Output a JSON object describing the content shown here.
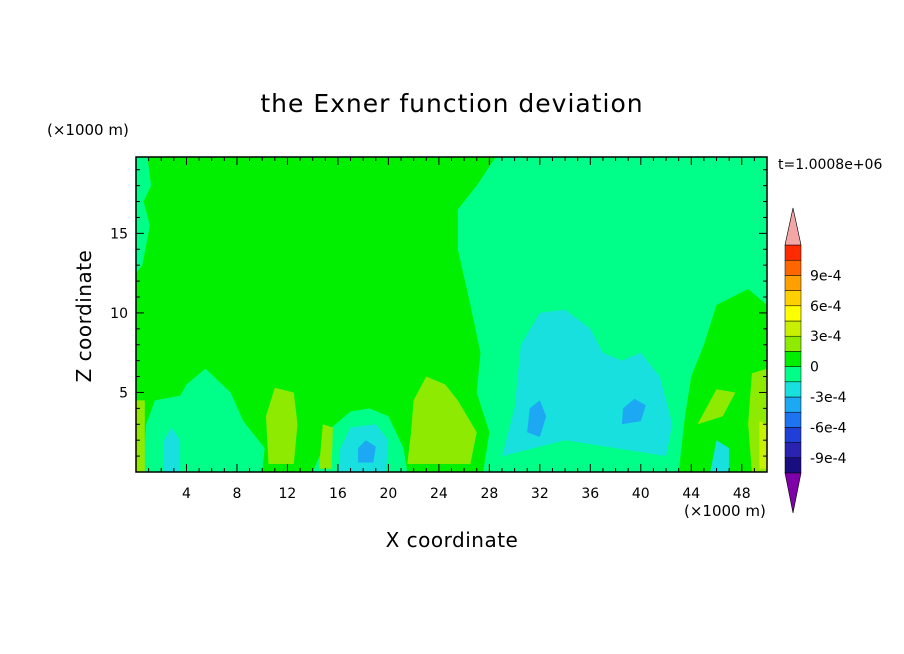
{
  "chart_data": {
    "type": "heatmap",
    "title": "the Exner function deviation",
    "xlabel": "X coordinate",
    "ylabel": "Z coordinate",
    "x_unit": "(×1000 m)",
    "y_unit": "(×1000 m)",
    "time_label": "t=1.0008e+06",
    "xlim": [
      0,
      50
    ],
    "ylim": [
      0,
      19.8
    ],
    "x_ticks": [
      "4",
      "8",
      "12",
      "16",
      "20",
      "24",
      "28",
      "32",
      "36",
      "40",
      "44",
      "48"
    ],
    "y_ticks": [
      "5",
      "10",
      "15"
    ],
    "colorbar": {
      "labels": [
        "9e-4",
        "6e-4",
        "3e-4",
        "0",
        "-3e-4",
        "-6e-4",
        "-9e-4"
      ],
      "level_min": -0.00105,
      "level_step": 0.00015,
      "colors": [
        "#1a0d80",
        "#2a22b0",
        "#1f3fd6",
        "#1e74f0",
        "#1ca8f2",
        "#17e0de",
        "#00ff88",
        "#00ee00",
        "#8eea00",
        "#c8f000",
        "#ffff00",
        "#ffd000",
        "#ff9f00",
        "#ff6600",
        "#ff2a00"
      ],
      "extend_low_color": "#7f00a8",
      "extend_high_color": "#f4a6a6"
    },
    "background_color": "#00f000",
    "regions": [
      {
        "label": "0 to 1.5e-4",
        "color": "#00f000",
        "poly": [
          [
            0,
            0
          ],
          [
            50,
            0
          ],
          [
            50,
            19.8
          ],
          [
            0,
            19.8
          ]
        ]
      },
      {
        "label": "-1.5e-4 to 0",
        "color": "#00ff88",
        "poly": [
          [
            28.5,
            19.8
          ],
          [
            50,
            19.8
          ],
          [
            50,
            10.5
          ],
          [
            48.5,
            11.5
          ],
          [
            46,
            10.5
          ],
          [
            45,
            8.0
          ],
          [
            44,
            6.0
          ],
          [
            43.5,
            3.5
          ],
          [
            43,
            0
          ],
          [
            27.5,
            0
          ],
          [
            28,
            2.5
          ],
          [
            27,
            5.0
          ],
          [
            27.3,
            7.5
          ],
          [
            26.5,
            10.5
          ],
          [
            25.5,
            14.0
          ],
          [
            25.5,
            16.5
          ],
          [
            27,
            18.0
          ]
        ]
      },
      {
        "label": "-1.5e-4 to 0",
        "color": "#00ff88",
        "poly": [
          [
            0,
            19.8
          ],
          [
            0.9,
            19.8
          ],
          [
            1.2,
            18.0
          ],
          [
            0.6,
            17.0
          ],
          [
            1.1,
            15.5
          ],
          [
            0.5,
            13.0
          ],
          [
            0,
            12.5
          ]
        ]
      },
      {
        "label": "-1.5e-4 to 0",
        "color": "#00ff88",
        "poly": [
          [
            0.5,
            0
          ],
          [
            10,
            0
          ],
          [
            10.2,
            1.5
          ],
          [
            8.5,
            3.2
          ],
          [
            7.5,
            5.0
          ],
          [
            5.5,
            6.5
          ],
          [
            4.0,
            5.5
          ],
          [
            3.5,
            4.8
          ],
          [
            1.5,
            4.5
          ],
          [
            0.8,
            3.0
          ]
        ]
      },
      {
        "label": "-1.5e-4 to 0",
        "color": "#00ff88",
        "poly": [
          [
            14,
            0
          ],
          [
            21.5,
            0
          ],
          [
            21.2,
            1.5
          ],
          [
            20,
            3.5
          ],
          [
            18.5,
            4.0
          ],
          [
            17,
            3.8
          ],
          [
            15.5,
            2.8
          ]
        ]
      },
      {
        "label": "-3e-4 to -1.5e-4",
        "color": "#17e0de",
        "poly": [
          [
            29,
            1.0
          ],
          [
            30,
            4.0
          ],
          [
            30.5,
            8.0
          ],
          [
            32,
            10.0
          ],
          [
            34,
            10.2
          ],
          [
            36,
            9.0
          ],
          [
            37,
            7.5
          ],
          [
            38.5,
            7.0
          ],
          [
            40,
            7.5
          ],
          [
            41.5,
            6.0
          ],
          [
            42.5,
            3.0
          ],
          [
            42,
            1.0
          ],
          [
            38,
            1.5
          ],
          [
            34,
            2.0
          ]
        ]
      },
      {
        "label": "-3e-4 to -1.5e-4",
        "color": "#17e0de",
        "poly": [
          [
            16,
            0
          ],
          [
            19.8,
            0
          ],
          [
            20,
            2.0
          ],
          [
            19,
            3.0
          ],
          [
            17,
            2.8
          ],
          [
            16.2,
            1.5
          ]
        ]
      },
      {
        "label": "-3e-4 to -1.5e-4",
        "color": "#17e0de",
        "poly": [
          [
            2.2,
            0
          ],
          [
            3.5,
            0
          ],
          [
            3.5,
            2.0
          ],
          [
            2.8,
            2.8
          ],
          [
            2.2,
            2.0
          ]
        ]
      },
      {
        "label": "-3e-4 to -1.5e-4",
        "color": "#17e0de",
        "poly": [
          [
            45.5,
            0
          ],
          [
            47,
            0
          ],
          [
            47,
            1.5
          ],
          [
            46,
            2.0
          ]
        ]
      },
      {
        "label": "1.5e-4 to 3e-4",
        "color": "#8eea00",
        "poly": [
          [
            10.5,
            0.5
          ],
          [
            12.5,
            0.5
          ],
          [
            12.8,
            3.0
          ],
          [
            12.5,
            5.0
          ],
          [
            11,
            5.3
          ],
          [
            10.3,
            3.5
          ]
        ]
      },
      {
        "label": "1.5e-4 to 3e-4",
        "color": "#8eea00",
        "poly": [
          [
            21.5,
            0.5
          ],
          [
            26.5,
            0.5
          ],
          [
            27,
            2.5
          ],
          [
            25.5,
            4.5
          ],
          [
            24.5,
            5.5
          ],
          [
            23,
            6.0
          ],
          [
            22,
            4.5
          ],
          [
            21.8,
            2.5
          ]
        ]
      },
      {
        "label": "1.5e-4 to 3e-4",
        "color": "#8eea00",
        "poly": [
          [
            0,
            0
          ],
          [
            0.7,
            0
          ],
          [
            0.7,
            4.5
          ],
          [
            0,
            4.5
          ]
        ]
      },
      {
        "label": "1.5e-4 to 3e-4",
        "color": "#8eea00",
        "poly": [
          [
            14.5,
            0.2
          ],
          [
            15.5,
            0.2
          ],
          [
            15.6,
            2.8
          ],
          [
            14.8,
            3.0
          ]
        ]
      },
      {
        "label": "1.5e-4 to 3e-4",
        "color": "#8eea00",
        "poly": [
          [
            48.8,
            0
          ],
          [
            50,
            0
          ],
          [
            50,
            6.5
          ],
          [
            48.8,
            6.2
          ],
          [
            48.5,
            3.0
          ]
        ]
      },
      {
        "label": "1.5e-4 to 3e-4",
        "color": "#8eea00",
        "poly": [
          [
            44.5,
            3.0
          ],
          [
            46.5,
            3.5
          ],
          [
            47.5,
            5.0
          ],
          [
            46,
            5.2
          ]
        ]
      },
      {
        "label": "3e-4 to 4.5e-4",
        "color": "#c8f000",
        "poly": [
          [
            49.4,
            0.2
          ],
          [
            50,
            0.2
          ],
          [
            50,
            3.0
          ],
          [
            49.4,
            3.2
          ]
        ]
      },
      {
        "label": "-4.5e-4 to -3e-4",
        "color": "#1ca8f2",
        "poly": [
          [
            31,
            2.5
          ],
          [
            32,
            2.2
          ],
          [
            32.5,
            3.5
          ],
          [
            32,
            4.5
          ],
          [
            31.2,
            4.0
          ]
        ]
      },
      {
        "label": "-4.5e-4 to -3e-4",
        "color": "#1ca8f2",
        "poly": [
          [
            38.5,
            3.0
          ],
          [
            40,
            3.2
          ],
          [
            40.4,
            4.2
          ],
          [
            39.5,
            4.6
          ],
          [
            38.6,
            4.0
          ]
        ]
      },
      {
        "label": "-4.5e-4 to -3e-4",
        "color": "#1ca8f2",
        "poly": [
          [
            17.6,
            0.6
          ],
          [
            18.8,
            0.6
          ],
          [
            19,
            1.6
          ],
          [
            18.2,
            2.0
          ],
          [
            17.6,
            1.5
          ]
        ]
      }
    ]
  }
}
